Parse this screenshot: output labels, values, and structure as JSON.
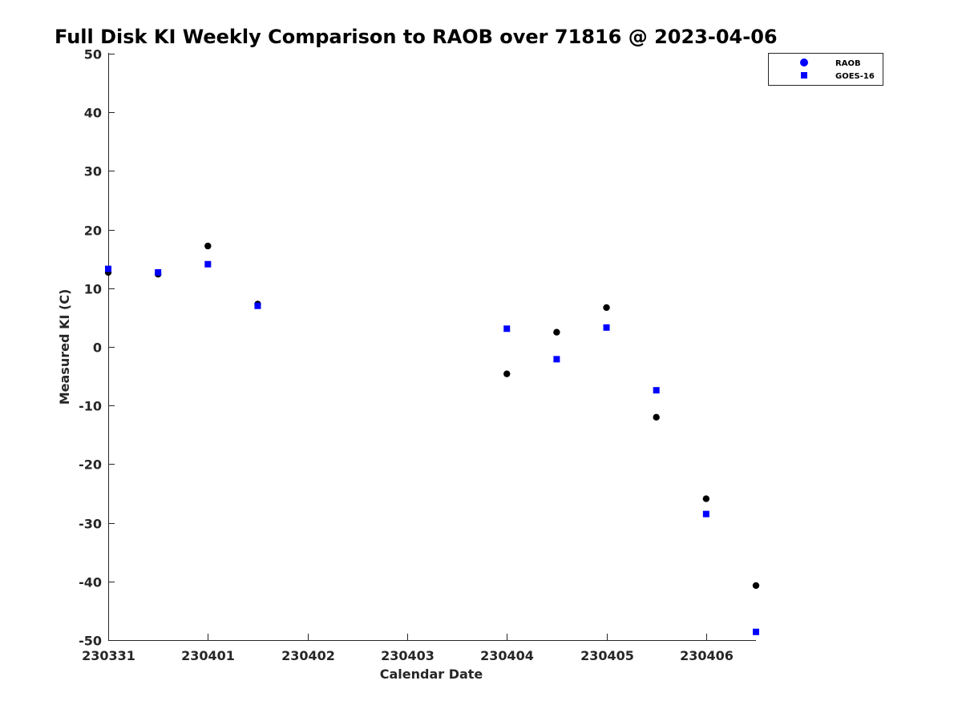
{
  "chart_data": {
    "type": "scatter",
    "title": "Full Disk KI Weekly Comparison to RAOB over 71816 @ 2023-04-06",
    "xlabel": "Calendar Date",
    "ylabel": "Measured KI (C)",
    "xlim": [
      0,
      6.5
    ],
    "ylim": [
      -50,
      50
    ],
    "x_ticks": [
      {
        "value": 0,
        "label": "230331"
      },
      {
        "value": 1,
        "label": "230401"
      },
      {
        "value": 2,
        "label": "230402"
      },
      {
        "value": 3,
        "label": "230403"
      },
      {
        "value": 4,
        "label": "230404"
      },
      {
        "value": 5,
        "label": "230405"
      },
      {
        "value": 6,
        "label": "230406"
      }
    ],
    "y_ticks": [
      {
        "value": 50,
        "label": "50"
      },
      {
        "value": 40,
        "label": "40"
      },
      {
        "value": 30,
        "label": "30"
      },
      {
        "value": 20,
        "label": "20"
      },
      {
        "value": 10,
        "label": "10"
      },
      {
        "value": 0,
        "label": "0"
      },
      {
        "value": -10,
        "label": "-10"
      },
      {
        "value": -20,
        "label": "-20"
      },
      {
        "value": -30,
        "label": "-30"
      },
      {
        "value": -40,
        "label": "-40"
      },
      {
        "value": -50,
        "label": "-50"
      }
    ],
    "grid": false,
    "legend_position": "top-right",
    "series": [
      {
        "name": "RAOB",
        "marker": "circle",
        "color": "#000000",
        "legend_color": "#0000ff",
        "points": [
          {
            "x": 0.0,
            "y": 12.7
          },
          {
            "x": 0.5,
            "y": 12.4
          },
          {
            "x": 1.0,
            "y": 17.2
          },
          {
            "x": 1.5,
            "y": 7.3
          },
          {
            "x": 4.0,
            "y": -4.6
          },
          {
            "x": 4.5,
            "y": 2.5
          },
          {
            "x": 5.0,
            "y": 6.7
          },
          {
            "x": 5.5,
            "y": -12.0
          },
          {
            "x": 6.0,
            "y": -25.9
          },
          {
            "x": 6.5,
            "y": -40.7
          }
        ]
      },
      {
        "name": "GOES-16",
        "marker": "square",
        "color": "#0000ff",
        "points": [
          {
            "x": 0.0,
            "y": 13.3
          },
          {
            "x": 0.5,
            "y": 12.7
          },
          {
            "x": 1.0,
            "y": 14.1
          },
          {
            "x": 1.5,
            "y": 7.0
          },
          {
            "x": 4.0,
            "y": 3.1
          },
          {
            "x": 4.5,
            "y": -2.1
          },
          {
            "x": 5.0,
            "y": 3.3
          },
          {
            "x": 5.5,
            "y": -7.4
          },
          {
            "x": 6.0,
            "y": -28.5
          },
          {
            "x": 6.5,
            "y": -48.6
          }
        ]
      }
    ]
  }
}
